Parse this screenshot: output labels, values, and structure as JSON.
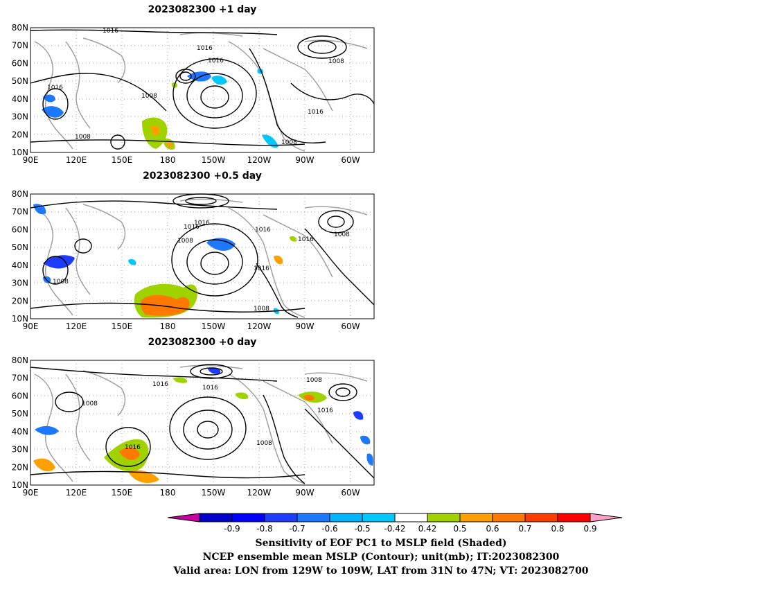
{
  "panels": [
    {
      "title": "2023082300  +1 day",
      "lat_ticks": [
        "80N",
        "70N",
        "60N",
        "50N",
        "40N",
        "30N",
        "20N",
        "10N"
      ],
      "lon_ticks": [
        "90E",
        "120E",
        "150E",
        "180",
        "150W",
        "120W",
        "90W",
        "60W"
      ],
      "contour_labels": [
        "1016",
        "1016",
        "1016",
        "1016",
        "1008",
        "1008",
        "1016",
        "1008",
        "1008"
      ]
    },
    {
      "title": "2023082300  +0.5 day",
      "lat_ticks": [
        "80N",
        "70N",
        "60N",
        "50N",
        "40N",
        "30N",
        "20N",
        "10N"
      ],
      "lon_ticks": [
        "90E",
        "120E",
        "150E",
        "180",
        "150W",
        "120W",
        "90W",
        "60W"
      ],
      "contour_labels": [
        "1016",
        "1016",
        "1008",
        "1016",
        "1016",
        "1008",
        "1016",
        "1008",
        "1008"
      ]
    },
    {
      "title": "2023082300  +0 day",
      "lat_ticks": [
        "80N",
        "70N",
        "60N",
        "50N",
        "40N",
        "30N",
        "20N",
        "10N"
      ],
      "lon_ticks": [
        "90E",
        "120E",
        "150E",
        "180",
        "150W",
        "120W",
        "90W",
        "60W"
      ],
      "contour_labels": [
        "1016",
        "1016",
        "1008",
        "1008",
        "1016",
        "1016",
        "1008"
      ]
    }
  ],
  "colorbar": {
    "labels": [
      "-0.9",
      "-0.8",
      "-0.7",
      "-0.6",
      "-0.5",
      "-0.42",
      "0.42",
      "0.5",
      "0.6",
      "0.7",
      "0.8",
      "0.9"
    ],
    "colors": [
      "#0000c8",
      "#0000ff",
      "#1e3cff",
      "#1e78ff",
      "#00b4ff",
      "#00c8ff",
      "#ffffff",
      "#a0d200",
      "#ffa000",
      "#ff7800",
      "#ff3c00",
      "#ff0000"
    ],
    "low_extend_color": "#c800a0",
    "high_extend_color": "#ffa0c8"
  },
  "footer": [
    "Sensitivity of EOF PC1 to MSLP field (Shaded)",
    "NCEP ensemble mean MSLP (Contour); unit(mb); IT:2023082300",
    "Valid area: LON from 129W to 109W, LAT from 31N to 47N; VT: 2023082700"
  ],
  "colors": {
    "contour": "#000000",
    "coastline": "#a0a0a0",
    "grid": "#a0a0a0",
    "negative_shade": "#1e78ff",
    "positive_green": "#a0d200",
    "positive_orange": "#ff7800"
  }
}
